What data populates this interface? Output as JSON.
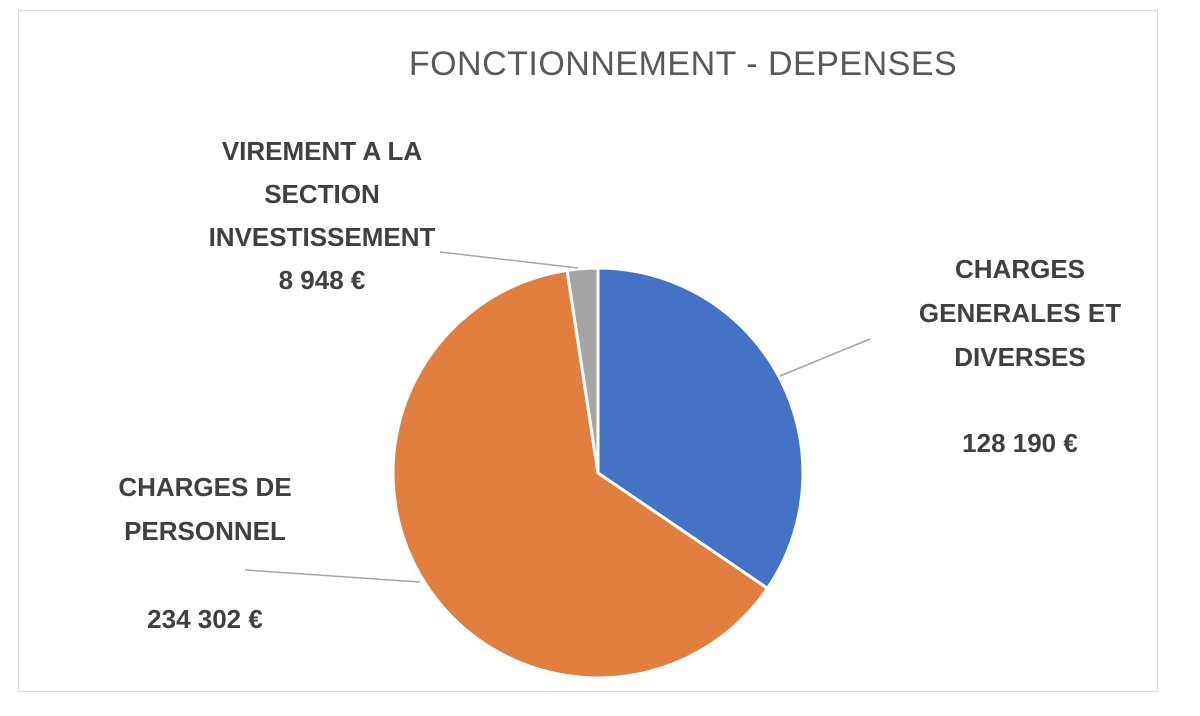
{
  "chart_data": {
    "type": "pie",
    "title": "FONCTIONNEMENT -  DEPENSES",
    "slices": [
      {
        "name": "CHARGES GENERALES ET DIVERSES",
        "label_lines": [
          "CHARGES",
          "GENERALES ET",
          "DIVERSES"
        ],
        "value": 128190,
        "value_label": "128 190 €",
        "color": "#4472C4"
      },
      {
        "name": "CHARGES DE PERSONNEL",
        "label_lines": [
          "CHARGES DE",
          "PERSONNEL"
        ],
        "value": 234302,
        "value_label": "234 302 €",
        "color": "#E07F3F"
      },
      {
        "name": "VIREMENT A LA SECTION INVESTISSEMENT",
        "label_lines": [
          "VIREMENT A LA",
          "SECTION",
          "INVESTISSEMENT"
        ],
        "value": 8948,
        "value_label": "8 948 €",
        "color": "#A5A5A5"
      }
    ],
    "legend": "none",
    "data_labels": "outside with leader lines"
  }
}
